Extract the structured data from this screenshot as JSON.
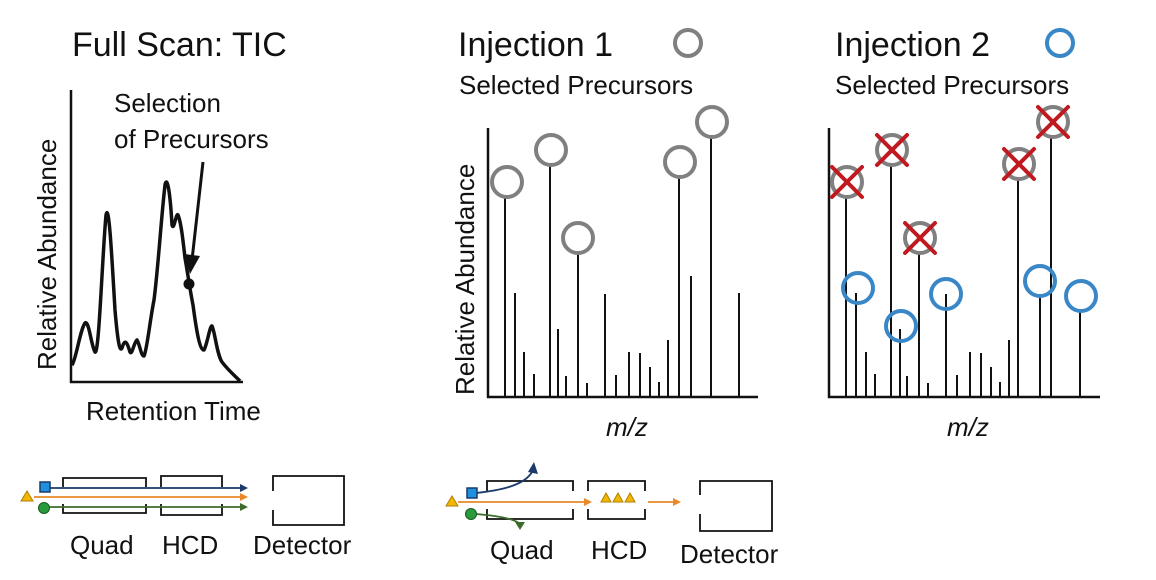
{
  "panel_tic": {
    "title": "Full Scan: TIC",
    "annotation_line1": "Selection",
    "annotation_line2": "of Precursors",
    "ylabel": "Relative Abundance",
    "xlabel": "Retention Time"
  },
  "panel_inj1": {
    "title": "Injection 1",
    "subtitle": "Selected Precursors",
    "ylabel": "Relative Abundance",
    "xlabel": "m/z",
    "marker_color": "#808080"
  },
  "panel_inj2": {
    "title": "Injection 2",
    "subtitle": "Selected Precursors",
    "xlabel": "m/z",
    "marker_color": "#3a87c8",
    "excluded_color": "#c0191f"
  },
  "instrument_left": {
    "quad": "Quad",
    "hcd": "HCD",
    "detector": "Detector"
  },
  "instrument_right": {
    "quad": "Quad",
    "hcd": "HCD",
    "detector": "Detector"
  },
  "colors": {
    "square_ion": "#1f8fe0",
    "circle_ion": "#2a9a3a",
    "triangle_ion": "#f2b800",
    "orange_path": "#e8892a",
    "navy_path": "#1b3a6b",
    "green_path": "#3c6b2a"
  }
}
